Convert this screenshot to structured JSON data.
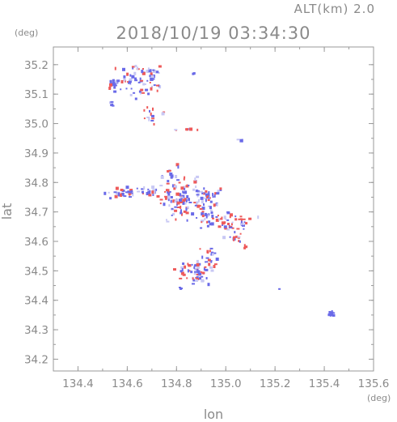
{
  "chart_data": {
    "type": "scatter",
    "title": "2018/10/19 03:34:30",
    "subtitle": "ALT(km) 2.0",
    "xlabel": "lon",
    "ylabel": "lat",
    "x_unit": "(deg)",
    "y_unit": "(deg)",
    "xlim": [
      134.3,
      135.6
    ],
    "ylim": [
      34.16,
      35.26
    ],
    "x_ticks": [
      "134.4",
      "134.6",
      "134.8",
      "135.0",
      "135.2",
      "135.4",
      "135.6"
    ],
    "x_tick_values": [
      134.4,
      134.6,
      134.8,
      135.0,
      135.2,
      135.4,
      135.6
    ],
    "y_ticks": [
      "35.2",
      "35.1",
      "35.0",
      "34.9",
      "34.8",
      "34.7",
      "34.6",
      "34.5",
      "34.4",
      "34.3",
      "34.2"
    ],
    "y_tick_values": [
      35.2,
      35.1,
      35.0,
      34.9,
      34.8,
      34.7,
      34.6,
      34.5,
      34.4,
      34.3,
      34.2
    ],
    "grid": false,
    "colors": {
      "positive": "#ee5a5a",
      "negative": "#6a6ae8",
      "light": "#c8c8f4",
      "axis": "#9a9a9a"
    },
    "clusters": [
      {
        "lon": 134.545,
        "lat": 35.135,
        "sx": 0.012,
        "sy": 0.008,
        "n": 18,
        "mix": 0.0
      },
      {
        "lon": 134.535,
        "lat": 35.065,
        "sx": 0.005,
        "sy": 0.005,
        "n": 5,
        "mix": 0.0
      },
      {
        "lon": 134.64,
        "lat": 35.145,
        "sx": 0.05,
        "sy": 0.025,
        "n": 70,
        "mix": 0.3
      },
      {
        "lon": 134.7,
        "lat": 35.175,
        "sx": 0.01,
        "sy": 0.01,
        "n": 8,
        "mix": 0.3
      },
      {
        "lon": 134.69,
        "lat": 35.03,
        "sx": 0.012,
        "sy": 0.015,
        "n": 12,
        "mix": 0.7
      },
      {
        "lon": 134.745,
        "lat": 35.04,
        "sx": 0.003,
        "sy": 0.003,
        "n": 2,
        "mix": 1.0
      },
      {
        "lon": 134.8,
        "lat": 34.98,
        "sx": 0.004,
        "sy": 0.002,
        "n": 2,
        "mix": 1.0
      },
      {
        "lon": 134.855,
        "lat": 34.98,
        "sx": 0.015,
        "sy": 0.003,
        "n": 5,
        "mix": 0.8
      },
      {
        "lon": 135.06,
        "lat": 34.945,
        "sx": 0.006,
        "sy": 0.003,
        "n": 3,
        "mix": 0.0
      },
      {
        "lon": 134.87,
        "lat": 35.165,
        "sx": 0.003,
        "sy": 0.003,
        "n": 2,
        "mix": 0.0
      },
      {
        "lon": 134.6,
        "lat": 34.765,
        "sx": 0.04,
        "sy": 0.01,
        "n": 35,
        "mix": 0.25
      },
      {
        "lon": 134.7,
        "lat": 34.765,
        "sx": 0.02,
        "sy": 0.01,
        "n": 14,
        "mix": 0.2
      },
      {
        "lon": 134.79,
        "lat": 34.79,
        "sx": 0.03,
        "sy": 0.03,
        "n": 30,
        "mix": 0.45
      },
      {
        "lon": 134.82,
        "lat": 34.73,
        "sx": 0.05,
        "sy": 0.03,
        "n": 85,
        "mix": 0.45
      },
      {
        "lon": 134.88,
        "lat": 34.81,
        "sx": 0.006,
        "sy": 0.006,
        "n": 4,
        "mix": 0.8
      },
      {
        "lon": 134.93,
        "lat": 34.745,
        "sx": 0.03,
        "sy": 0.015,
        "n": 35,
        "mix": 0.45
      },
      {
        "lon": 134.95,
        "lat": 34.68,
        "sx": 0.03,
        "sy": 0.02,
        "n": 30,
        "mix": 0.45
      },
      {
        "lon": 135.03,
        "lat": 34.66,
        "sx": 0.03,
        "sy": 0.02,
        "n": 35,
        "mix": 0.45
      },
      {
        "lon": 135.07,
        "lat": 34.67,
        "sx": 0.008,
        "sy": 0.006,
        "n": 6,
        "mix": 0.8
      },
      {
        "lon": 135.04,
        "lat": 34.61,
        "sx": 0.015,
        "sy": 0.01,
        "n": 10,
        "mix": 0.6
      },
      {
        "lon": 135.08,
        "lat": 34.58,
        "sx": 0.004,
        "sy": 0.006,
        "n": 4,
        "mix": 0.8
      },
      {
        "lon": 134.93,
        "lat": 34.55,
        "sx": 0.02,
        "sy": 0.02,
        "n": 20,
        "mix": 0.5
      },
      {
        "lon": 134.87,
        "lat": 34.5,
        "sx": 0.04,
        "sy": 0.018,
        "n": 60,
        "mix": 0.45
      },
      {
        "lon": 134.82,
        "lat": 34.44,
        "sx": 0.004,
        "sy": 0.002,
        "n": 3,
        "mix": 0.0
      },
      {
        "lon": 135.22,
        "lat": 34.44,
        "sx": 0.002,
        "sy": 0.002,
        "n": 1,
        "mix": 0.0
      },
      {
        "lon": 135.13,
        "lat": 34.68,
        "sx": 0.002,
        "sy": 0.002,
        "n": 1,
        "mix": 0.0
      },
      {
        "lon": 135.43,
        "lat": 34.355,
        "sx": 0.007,
        "sy": 0.004,
        "n": 14,
        "mix": 0.0
      }
    ]
  }
}
